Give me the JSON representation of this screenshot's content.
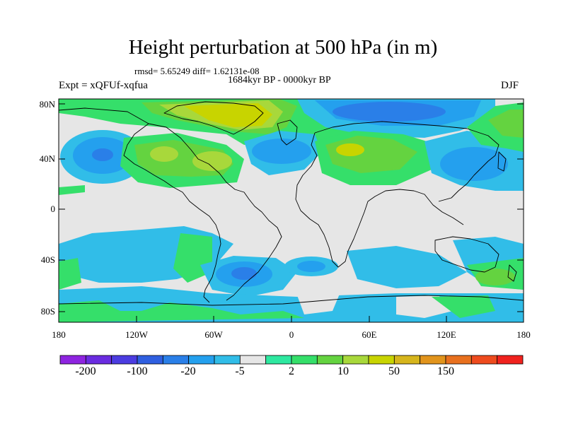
{
  "title": "Height perturbation at 500 hPa (in m)",
  "subtitle": "rmsd= 5.65249 diff= 1.62131e-08",
  "period": "1684kyr BP - 0000kyr BP",
  "experiment": "Expt = xQFUf-xqfua",
  "season": "DJF",
  "y_axis": {
    "labels": [
      "80N",
      "40N",
      "0",
      "40S",
      "80S"
    ]
  },
  "x_axis": {
    "labels": [
      "180",
      "120W",
      "60W",
      "0",
      "60E",
      "120E",
      "180"
    ]
  },
  "colorbar": {
    "colors": [
      "#8e24e0",
      "#6a2ce0",
      "#4b3ce0",
      "#2f5fe0",
      "#2a7fe8",
      "#24a0ee",
      "#31bde8",
      "#e6e6e6",
      "#2ee8a0",
      "#35df6a",
      "#64d340",
      "#a8d83b",
      "#c8d400",
      "#d6b51c",
      "#e1941c",
      "#e8701e",
      "#ee4b1e",
      "#f0221e"
    ],
    "labels": [
      "-200",
      "-100",
      "-20",
      "-5",
      "2",
      "10",
      "50",
      "150"
    ]
  },
  "palette": {
    "ocean_background": "#e6e6e6",
    "coast": "#000000"
  }
}
